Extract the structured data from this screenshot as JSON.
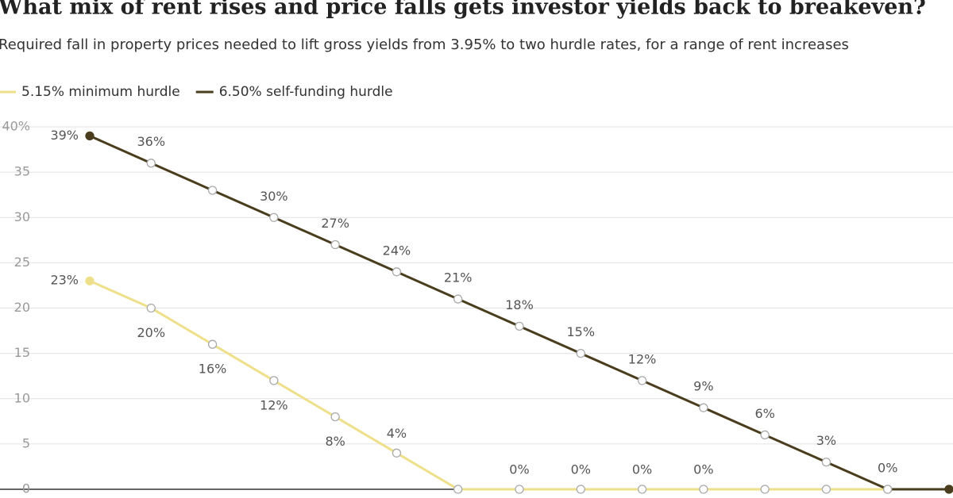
{
  "chart_data": {
    "type": "line",
    "title": "What mix of rent rises and price falls gets investor yields back to breakeven?",
    "subtitle": "Required fall in property prices needed to lift gross yields from 3.95% to two hurdle rates, for a range of rent increases",
    "ylim": [
      0,
      40
    ],
    "yticks": [
      0,
      5,
      10,
      15,
      20,
      25,
      30,
      35,
      {
        "value": 40,
        "label": "40%"
      }
    ],
    "grid": true,
    "series": [
      {
        "name": "5.15% minimum hurdle",
        "color": "#eee08a",
        "values": [
          23,
          20,
          16,
          12,
          8,
          4,
          0,
          0,
          0,
          0,
          0,
          0,
          0,
          0,
          0
        ],
        "value_labels": [
          "23%",
          "20%",
          "16%",
          "12%",
          "8%",
          "4%",
          null,
          "0%",
          "0%",
          "0%",
          "0%",
          null,
          null,
          null,
          null
        ]
      },
      {
        "name": "6.50% self-funding hurdle",
        "color": "#4a3d1e",
        "values": [
          39,
          36,
          33,
          30,
          27,
          24,
          21,
          18,
          15,
          12,
          9,
          6,
          3,
          0,
          0
        ],
        "value_labels": [
          "39%",
          "36%",
          null,
          "30%",
          "27%",
          "24%",
          "21%",
          "18%",
          "15%",
          "12%",
          "9%",
          "6%",
          "3%",
          "0%",
          null
        ]
      }
    ]
  }
}
